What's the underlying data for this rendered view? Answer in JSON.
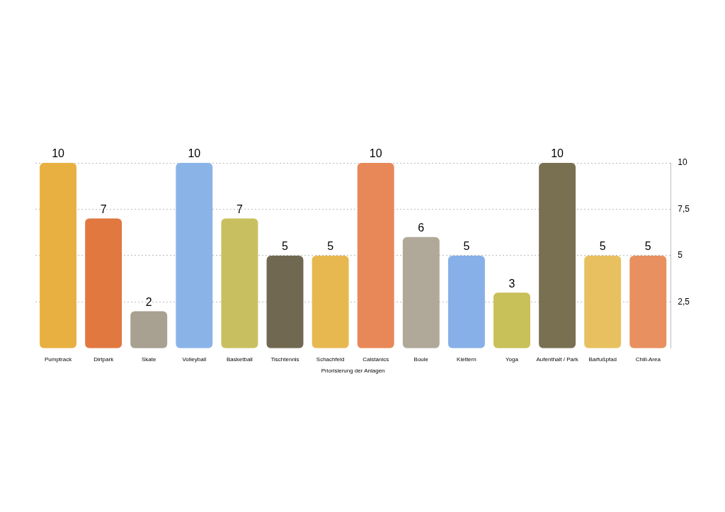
{
  "chart_data": {
    "type": "bar",
    "xlabel": "Priorisierung der Anlagen",
    "categories": [
      "Pumptrack",
      "Dirtpark",
      "Skate",
      "Volleyball",
      "Basketball",
      "Tischtennis",
      "Schachfeld",
      "Calstanics",
      "Boule",
      "Klettern",
      "Yoga",
      "Aufenthalt / Park",
      "Barfußpfad",
      "Chill-Area"
    ],
    "values": [
      10,
      7,
      2,
      10,
      7,
      5,
      5,
      10,
      6,
      5,
      3,
      10,
      5,
      5
    ],
    "colors": [
      "#e8b040",
      "#e07840",
      "#a8a090",
      "#8ab4e8",
      "#c8c060",
      "#706850",
      "#e8b850",
      "#e88858",
      "#b0a898",
      "#88b0e8",
      "#c8c058",
      "#787050",
      "#e8c060",
      "#e89060"
    ],
    "ylim": [
      0,
      10
    ],
    "yticks": [
      {
        "value": 2.5,
        "label": "2,5"
      },
      5,
      {
        "value": 7.5,
        "label": "7,5"
      },
      10
    ],
    "grid": "y",
    "data_labels": true,
    "legend": false
  }
}
